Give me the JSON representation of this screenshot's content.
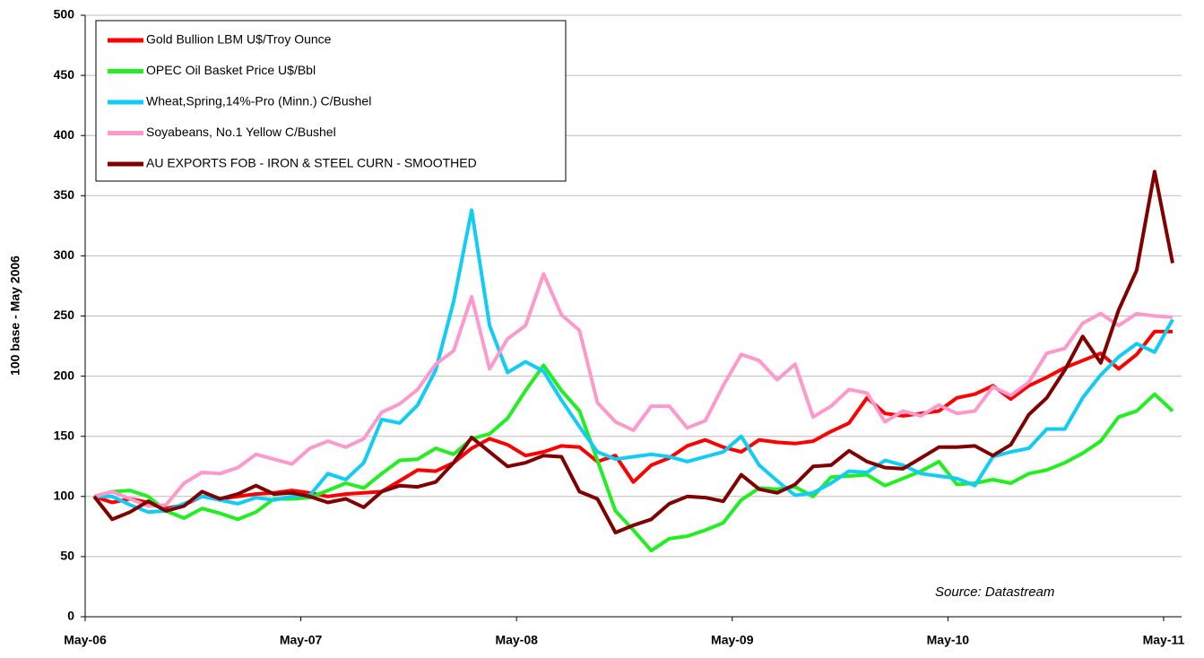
{
  "chart_data": {
    "type": "line",
    "y_label": "100 base - May 2006",
    "annotation": "Source: Datastream",
    "categories": [
      "May-06",
      null,
      null,
      null,
      null,
      null,
      null,
      null,
      null,
      null,
      null,
      null,
      "May-07",
      null,
      null,
      null,
      null,
      null,
      null,
      null,
      null,
      null,
      null,
      null,
      "May-08",
      null,
      null,
      null,
      null,
      null,
      null,
      null,
      null,
      null,
      null,
      null,
      "May-09",
      null,
      null,
      null,
      null,
      null,
      null,
      null,
      null,
      null,
      null,
      null,
      "May-10",
      null,
      null,
      null,
      null,
      null,
      null,
      null,
      null,
      null,
      null,
      null,
      "May-11"
    ],
    "ylim": [
      0,
      500
    ],
    "yticks": [
      0,
      50,
      100,
      150,
      200,
      250,
      300,
      350,
      400,
      450,
      500
    ],
    "grid": true,
    "legend": "upper left",
    "series": [
      {
        "name": "Gold Bullion LBM U$/Troy Ounce",
        "color": "#ff0000",
        "values": [
          100,
          95,
          98,
          95,
          90,
          93,
          100,
          98,
          100,
          102,
          103,
          105,
          103,
          100,
          102,
          103,
          104,
          113,
          122,
          121,
          128,
          140,
          148,
          143,
          134,
          137,
          142,
          141,
          129,
          134,
          112,
          126,
          132,
          142,
          147,
          141,
          137,
          147,
          145,
          144,
          146,
          154,
          161,
          182,
          169,
          167,
          169,
          171,
          182,
          185,
          192,
          181,
          192,
          199,
          207,
          213,
          219,
          206,
          218,
          237,
          237
        ]
      },
      {
        "name": "OPEC Oil Basket Price U$/Bbl",
        "color": "#22ee22",
        "values": [
          100,
          104,
          105,
          100,
          88,
          82,
          90,
          86,
          81,
          87,
          98,
          98,
          99,
          105,
          111,
          107,
          119,
          130,
          131,
          140,
          135,
          148,
          152,
          165,
          188,
          209,
          188,
          171,
          130,
          88,
          72,
          55,
          65,
          67,
          72,
          78,
          97,
          107,
          106,
          108,
          100,
          116,
          117,
          118,
          109,
          115,
          121,
          129,
          110,
          111,
          114,
          111,
          119,
          122,
          128,
          136,
          146,
          166,
          171,
          185,
          171
        ]
      },
      {
        "name": "Wheat,Spring,14%-Pro (Minn.) C/Bushel",
        "color": "#11ccf5",
        "values": [
          100,
          100,
          93,
          87,
          88,
          94,
          100,
          97,
          94,
          99,
          97,
          100,
          101,
          119,
          114,
          128,
          164,
          161,
          176,
          205,
          262,
          338,
          242,
          203,
          212,
          204,
          180,
          158,
          137,
          131,
          133,
          135,
          133,
          129,
          133,
          137,
          150,
          126,
          113,
          101,
          103,
          111,
          121,
          120,
          130,
          126,
          119,
          117,
          115,
          109,
          133,
          137,
          140,
          156,
          156,
          182,
          201,
          216,
          227,
          220,
          247
        ]
      },
      {
        "name": "Soyabeans, No.1 Yellow C/Bushel",
        "color": "#ff99cc",
        "values": [
          100,
          104,
          98,
          92,
          93,
          111,
          120,
          119,
          124,
          135,
          131,
          127,
          140,
          146,
          141,
          148,
          170,
          177,
          189,
          210,
          221,
          266,
          206,
          231,
          242,
          285,
          251,
          238,
          178,
          162,
          155,
          175,
          175,
          157,
          163,
          192,
          218,
          213,
          197,
          210,
          166,
          175,
          189,
          186,
          162,
          171,
          167,
          176,
          169,
          171,
          191,
          184,
          195,
          219,
          223,
          244,
          252,
          242,
          252,
          250,
          249
        ]
      },
      {
        "name": "AU EXPORTS FOB - IRON & STEEL CURN - SMOOTHED",
        "color": "#800000",
        "values": [
          100,
          81,
          87,
          96,
          88,
          92,
          104,
          98,
          102,
          109,
          102,
          103,
          100,
          95,
          98,
          91,
          104,
          109,
          108,
          112,
          128,
          149,
          137,
          125,
          128,
          134,
          133,
          104,
          98,
          70,
          76,
          81,
          94,
          100,
          99,
          96,
          118,
          106,
          103,
          110,
          125,
          126,
          138,
          129,
          124,
          123,
          132,
          141,
          141,
          142,
          134,
          143,
          168,
          182,
          205,
          233,
          211,
          255,
          288,
          370,
          294
        ]
      }
    ]
  }
}
